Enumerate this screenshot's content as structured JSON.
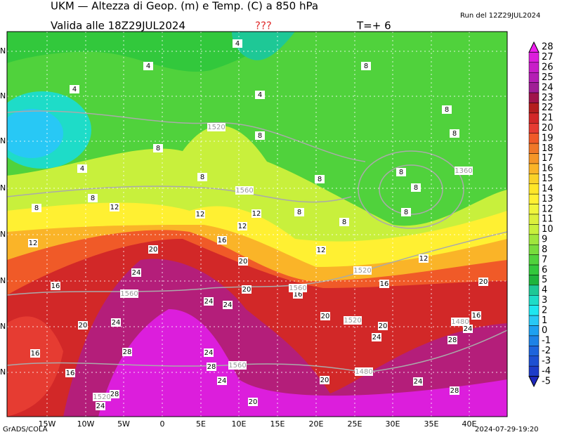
{
  "header": {
    "title": "UKM — Altezza di Geop. (m) e Temp. (C) a 850 hPa",
    "run": "Run del 12Z29JUL2024",
    "valid": "Valida alle 18Z29JUL2024",
    "flag": "???",
    "step": "T=+ 6"
  },
  "colorbar": {
    "levels": [
      28,
      27,
      26,
      25,
      24,
      23,
      22,
      21,
      20,
      19,
      18,
      17,
      16,
      15,
      14,
      13,
      12,
      11,
      10,
      9,
      8,
      7,
      6,
      5,
      4,
      3,
      2,
      1,
      0,
      -1,
      -2,
      -3,
      -4,
      -5
    ],
    "colors": [
      "#f01ef0",
      "#dc1edc",
      "#c81ec8",
      "#b41eb4",
      "#a01e96",
      "#a0144b",
      "#b41e1e",
      "#d22828",
      "#e63c32",
      "#f05a28",
      "#f07828",
      "#f59628",
      "#fab428",
      "#fad228",
      "#ffe628",
      "#fff032",
      "#f0f53c",
      "#dcf03c",
      "#c8f03c",
      "#a0e63c",
      "#78dc3c",
      "#50d23c",
      "#32c83c",
      "#1eb43c",
      "#1ec896",
      "#1edcc8",
      "#1ee6f0",
      "#28c8f5",
      "#1ea0f0",
      "#1e82e6",
      "#1e64dc",
      "#1e50d2",
      "#1e3cc8",
      "#1e28be"
    ]
  },
  "map": {
    "lon_labels": [
      "15W",
      "10W",
      "5W",
      "0",
      "5E",
      "10E",
      "15E",
      "20E",
      "25E",
      "30E",
      "35E",
      "40E"
    ],
    "lat_labels": [
      "N",
      "N",
      "N",
      "N",
      "N",
      "N",
      "N",
      "N"
    ],
    "temp_labels": [
      4,
      4,
      4,
      4,
      4,
      8,
      8,
      8,
      8,
      8,
      8,
      8,
      8,
      8,
      8,
      8,
      8,
      8,
      8,
      12,
      12,
      12,
      12,
      12,
      12,
      12,
      16,
      16,
      16,
      16,
      16,
      16,
      16,
      20,
      20,
      20,
      20,
      20,
      20,
      20,
      20,
      20,
      24,
      24,
      24,
      24,
      24,
      24,
      24,
      24,
      24,
      24,
      28,
      28,
      28,
      28,
      28
    ],
    "height_labels": [
      1520,
      1560,
      1360,
      1520,
      1560,
      1560,
      1520,
      1480,
      1560,
      1480,
      1520
    ]
  },
  "footer": {
    "left": "GrADS/COLA",
    "right": "2024-07-29-19:20"
  }
}
